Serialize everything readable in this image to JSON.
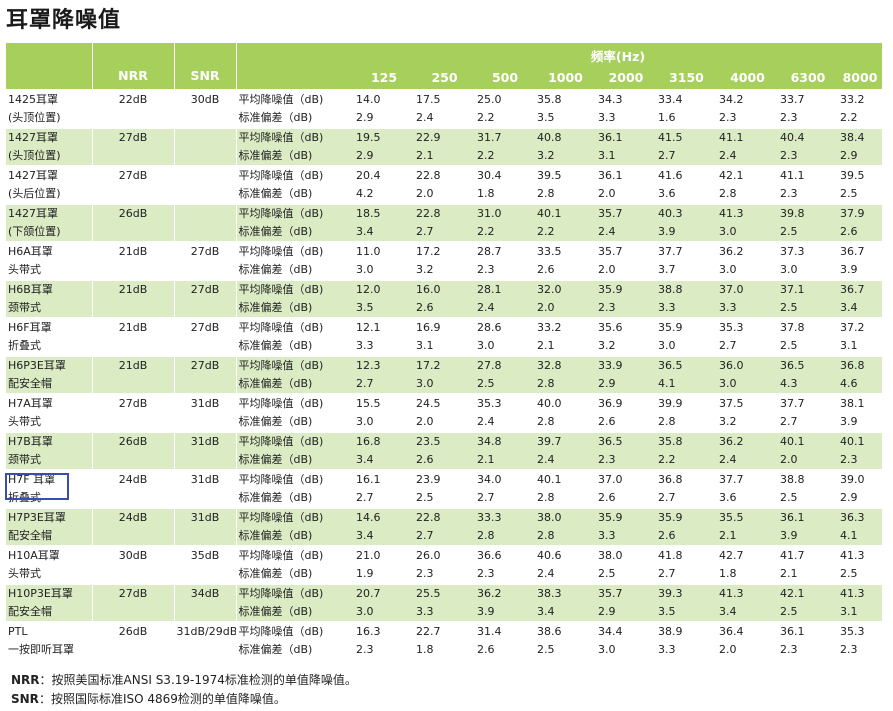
{
  "title": "耳罩降噪值",
  "header": {
    "nrr": "NRR",
    "snr": "SNR",
    "freq_title": "频率(Hz)",
    "freqs": [
      "125",
      "250",
      "500",
      "1000",
      "2000",
      "3150",
      "4000",
      "6300",
      "8000"
    ]
  },
  "rows": [
    {
      "name1": "1425耳罩",
      "name2": "(头顶位置)",
      "nrr": "22dB",
      "snr": "30dB",
      "label1": "平均降噪值（dB)",
      "label2": "标准偏差（dB)",
      "mean": [
        "14.0",
        "17.5",
        "25.0",
        "35.8",
        "34.3",
        "33.4",
        "34.2",
        "33.7",
        "33.2"
      ],
      "sd": [
        "2.9",
        "2.4",
        "2.2",
        "3.5",
        "3.3",
        "1.6",
        "2.3",
        "2.3",
        "2.2"
      ]
    },
    {
      "name1": "1427耳罩",
      "name2": "(头顶位置)",
      "nrr": "27dB",
      "snr": "",
      "label1": "平均降噪值（dB)",
      "label2": "标准偏差（dB)",
      "mean": [
        "19.5",
        "22.9",
        "31.7",
        "40.8",
        "36.1",
        "41.5",
        "41.1",
        "40.4",
        "38.4"
      ],
      "sd": [
        "2.9",
        "2.1",
        "2.2",
        "3.2",
        "3.1",
        "2.7",
        "2.4",
        "2.3",
        "2.9"
      ]
    },
    {
      "name1": "1427耳罩",
      "name2": "(头后位置)",
      "nrr": "27dB",
      "snr": "",
      "label1": "平均降噪值（dB)",
      "label2": "标准偏差（dB)",
      "mean": [
        "20.4",
        "22.8",
        "30.4",
        "39.5",
        "36.1",
        "41.6",
        "42.1",
        "41.1",
        "39.5"
      ],
      "sd": [
        "4.2",
        "2.0",
        "1.8",
        "2.8",
        "2.0",
        "3.6",
        "2.8",
        "2.3",
        "2.5"
      ]
    },
    {
      "name1": "1427耳罩",
      "name2": "(下颌位置)",
      "nrr": "26dB",
      "snr": "",
      "label1": "平均降噪值（dB)",
      "label2": "标准偏差（dB)",
      "mean": [
        "18.5",
        "22.8",
        "31.0",
        "40.1",
        "35.7",
        "40.3",
        "41.3",
        "39.8",
        "37.9"
      ],
      "sd": [
        "3.4",
        "2.7",
        "2.2",
        "2.2",
        "2.4",
        "3.9",
        "3.0",
        "2.5",
        "2.6"
      ]
    },
    {
      "name1": "H6A耳罩",
      "name2": "头带式",
      "nrr": "21dB",
      "snr": "27dB",
      "label1": "平均降噪值（dB)",
      "label2": "标准偏差（dB)",
      "mean": [
        "11.0",
        "17.2",
        "28.7",
        "33.5",
        "35.7",
        "37.7",
        "36.2",
        "37.3",
        "36.7"
      ],
      "sd": [
        "3.0",
        "3.2",
        "2.3",
        "2.6",
        "2.0",
        "3.7",
        "3.0",
        "3.0",
        "3.9"
      ]
    },
    {
      "name1": "H6B耳罩",
      "name2": "颈带式",
      "nrr": "21dB",
      "snr": "27dB",
      "label1": "平均降噪值（dB)",
      "label2": "标准偏差（dB)",
      "mean": [
        "12.0",
        "16.0",
        "28.1",
        "32.0",
        "35.9",
        "38.8",
        "37.0",
        "37.1",
        "36.7"
      ],
      "sd": [
        "3.5",
        "2.6",
        "2.4",
        "2.0",
        "2.3",
        "3.3",
        "3.3",
        "2.5",
        "3.4"
      ]
    },
    {
      "name1": "H6F耳罩",
      "name2": "折叠式",
      "nrr": "21dB",
      "snr": "27dB",
      "label1": "平均降噪值（dB)",
      "label2": "标准偏差（dB)",
      "mean": [
        "12.1",
        "16.9",
        "28.6",
        "33.2",
        "35.6",
        "35.9",
        "35.3",
        "37.8",
        "37.2"
      ],
      "sd": [
        "3.3",
        "3.1",
        "3.0",
        "2.1",
        "3.2",
        "3.0",
        "2.7",
        "2.5",
        "3.1"
      ]
    },
    {
      "name1": "H6P3E耳罩",
      "name2": "配安全帽",
      "nrr": "21dB",
      "snr": "27dB",
      "label1": "平均降噪值（dB)",
      "label2": "标准偏差（dB)",
      "mean": [
        "12.3",
        "17.2",
        "27.8",
        "32.8",
        "33.9",
        "36.5",
        "36.0",
        "36.5",
        "36.8"
      ],
      "sd": [
        "2.7",
        "3.0",
        "2.5",
        "2.8",
        "2.9",
        "4.1",
        "3.0",
        "4.3",
        "4.6"
      ]
    },
    {
      "name1": "H7A耳罩",
      "name2": "头带式",
      "nrr": "27dB",
      "snr": "31dB",
      "label1": "平均降噪值（dB)",
      "label2": "标准偏差（dB)",
      "mean": [
        "15.5",
        "24.5",
        "35.3",
        "40.0",
        "36.9",
        "39.9",
        "37.5",
        "37.7",
        "38.1"
      ],
      "sd": [
        "3.0",
        "2.0",
        "2.4",
        "2.8",
        "2.6",
        "2.8",
        "3.2",
        "2.7",
        "3.9"
      ]
    },
    {
      "name1": "H7B耳罩",
      "name2": "颈带式",
      "nrr": "26dB",
      "snr": "31dB",
      "label1": "平均降噪值（dB)",
      "label2": "标准偏差（dB)",
      "mean": [
        "16.8",
        "23.5",
        "34.8",
        "39.7",
        "36.5",
        "35.8",
        "36.2",
        "40.1",
        "40.1"
      ],
      "sd": [
        "3.4",
        "2.6",
        "2.1",
        "2.4",
        "2.3",
        "2.2",
        "2.4",
        "2.0",
        "2.3"
      ]
    },
    {
      "name1": "H7F 耳罩",
      "name2": "折叠式",
      "nrr": "24dB",
      "snr": "31dB",
      "label1": "平均降噪值（dB)",
      "label2": "标准偏差（dB)",
      "mean": [
        "16.1",
        "23.9",
        "34.0",
        "40.1",
        "37.0",
        "36.8",
        "37.7",
        "38.8",
        "39.0"
      ],
      "sd": [
        "2.7",
        "2.5",
        "2.7",
        "2.8",
        "2.6",
        "2.7",
        "3.6",
        "2.5",
        "2.9"
      ]
    },
    {
      "name1": "H7P3E耳罩",
      "name2": "配安全帽",
      "nrr": "24dB",
      "snr": "31dB",
      "label1": "平均降噪值（dB)",
      "label2": "标准偏差（dB)",
      "mean": [
        "14.6",
        "22.8",
        "33.3",
        "38.0",
        "35.9",
        "35.9",
        "35.5",
        "36.1",
        "36.3"
      ],
      "sd": [
        "3.4",
        "2.7",
        "2.8",
        "2.8",
        "3.3",
        "2.6",
        "2.1",
        "3.9",
        "4.1"
      ]
    },
    {
      "name1": "H10A耳罩",
      "name2": "头带式",
      "nrr": "30dB",
      "snr": "35dB",
      "label1": "平均降噪值（dB)",
      "label2": "标准偏差（dB)",
      "mean": [
        "21.0",
        "26.0",
        "36.6",
        "40.6",
        "38.0",
        "41.8",
        "42.7",
        "41.7",
        "41.3"
      ],
      "sd": [
        "1.9",
        "2.3",
        "2.3",
        "2.4",
        "2.5",
        "2.7",
        "1.8",
        "2.1",
        "2.5"
      ]
    },
    {
      "name1": "H10P3E耳罩",
      "name2": "配安全帽",
      "nrr": "27dB",
      "snr": "34dB",
      "label1": "平均降噪值（dB)",
      "label2": "标准偏差（dB)",
      "mean": [
        "20.7",
        "25.5",
        "36.2",
        "38.3",
        "35.7",
        "39.3",
        "41.3",
        "42.1",
        "41.3"
      ],
      "sd": [
        "3.0",
        "3.3",
        "3.9",
        "3.4",
        "2.9",
        "3.5",
        "3.4",
        "2.5",
        "3.1"
      ]
    },
    {
      "name1": "PTL",
      "name2": "一按即听耳罩",
      "nrr": "26dB",
      "snr": "31dB/29dB",
      "label1": "平均降噪值（dB)",
      "label2": "标准偏差（dB)",
      "mean": [
        "16.3",
        "22.7",
        "31.4",
        "38.6",
        "34.4",
        "38.9",
        "36.4",
        "36.1",
        "35.3"
      ],
      "sd": [
        "2.3",
        "1.8",
        "2.6",
        "2.5",
        "3.0",
        "3.3",
        "2.0",
        "2.3",
        "2.3"
      ]
    }
  ],
  "notes": [
    {
      "key": "NRR",
      "text": "：按照美国标准ANSI S3.19-1974标准检测的单值降噪值。"
    },
    {
      "key": "SNR",
      "text": "：按照国际标准ISO 4869检测的单值降噪值。"
    }
  ]
}
